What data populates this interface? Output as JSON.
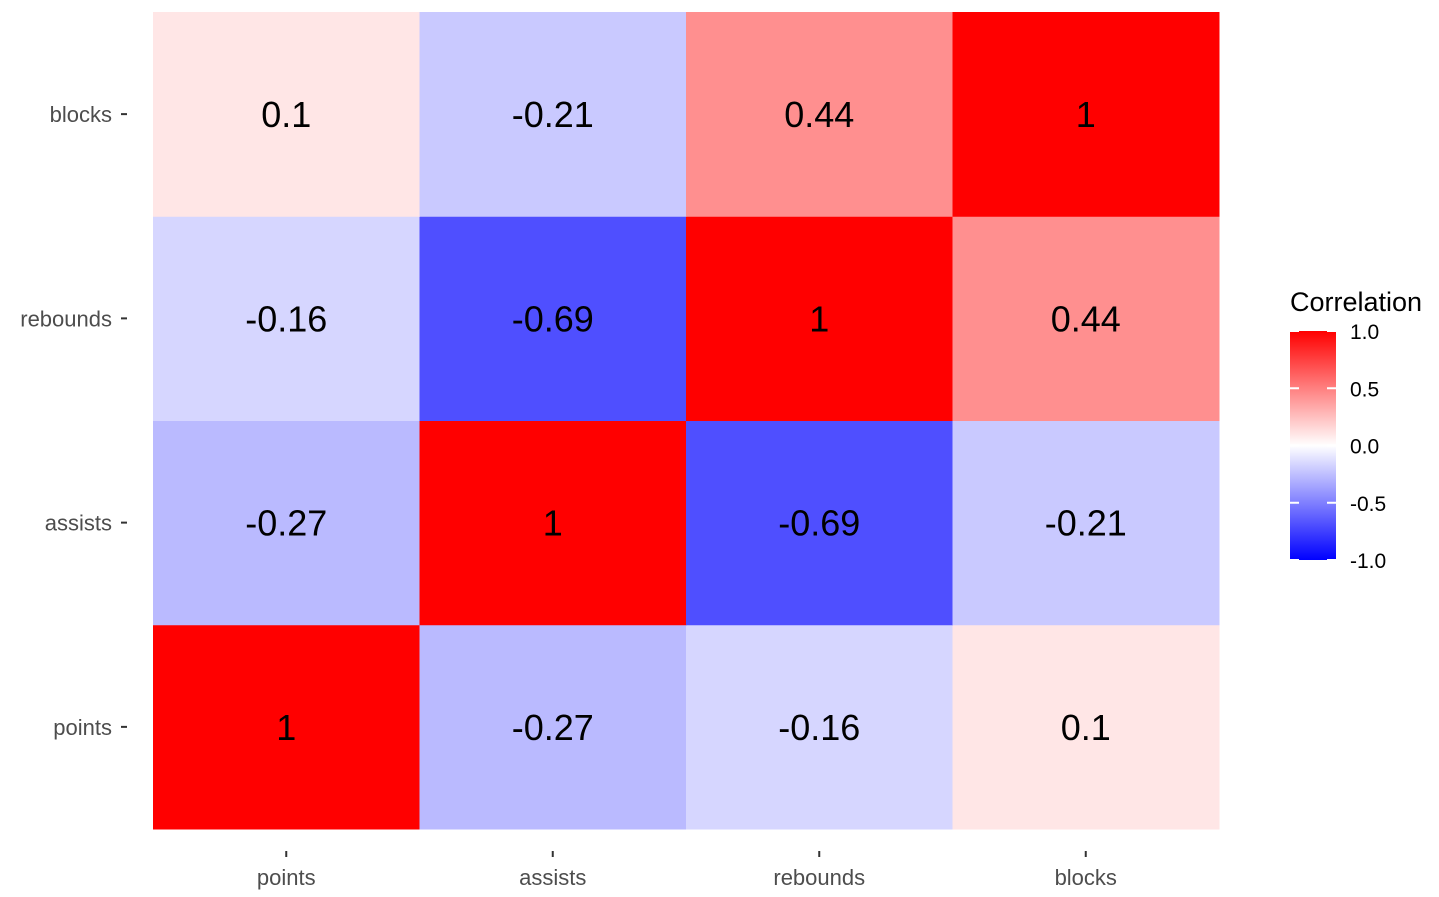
{
  "chart_data": {
    "type": "heatmap",
    "x_categories": [
      "points",
      "assists",
      "rebounds",
      "blocks"
    ],
    "y_categories": [
      "points",
      "assists",
      "rebounds",
      "blocks"
    ],
    "values": [
      [
        1,
        -0.27,
        -0.16,
        0.1
      ],
      [
        -0.27,
        1,
        -0.69,
        -0.21
      ],
      [
        -0.16,
        -0.69,
        1,
        0.44
      ],
      [
        0.1,
        -0.21,
        0.44,
        1
      ]
    ],
    "value_labels": [
      [
        "1",
        "-0.27",
        "-0.16",
        "0.1"
      ],
      [
        "-0.27",
        "1",
        "-0.69",
        "-0.21"
      ],
      [
        "-0.16",
        "-0.69",
        "1",
        "0.44"
      ],
      [
        "0.1",
        "-0.21",
        "0.44",
        "1"
      ]
    ],
    "legend": {
      "title": "Correlation",
      "placement": "right",
      "range": [
        -1,
        1
      ],
      "ticks": [
        1.0,
        0.5,
        0.0,
        -0.5,
        -1.0
      ],
      "tick_labels": [
        "1.0",
        "0.5",
        "0.0",
        "-0.5",
        "-1.0"
      ],
      "colors": {
        "low": "#0000ff",
        "mid": "#ffffff",
        "high": "#ff0000"
      }
    },
    "grid": false,
    "title": "",
    "xlabel": "",
    "ylabel": ""
  }
}
